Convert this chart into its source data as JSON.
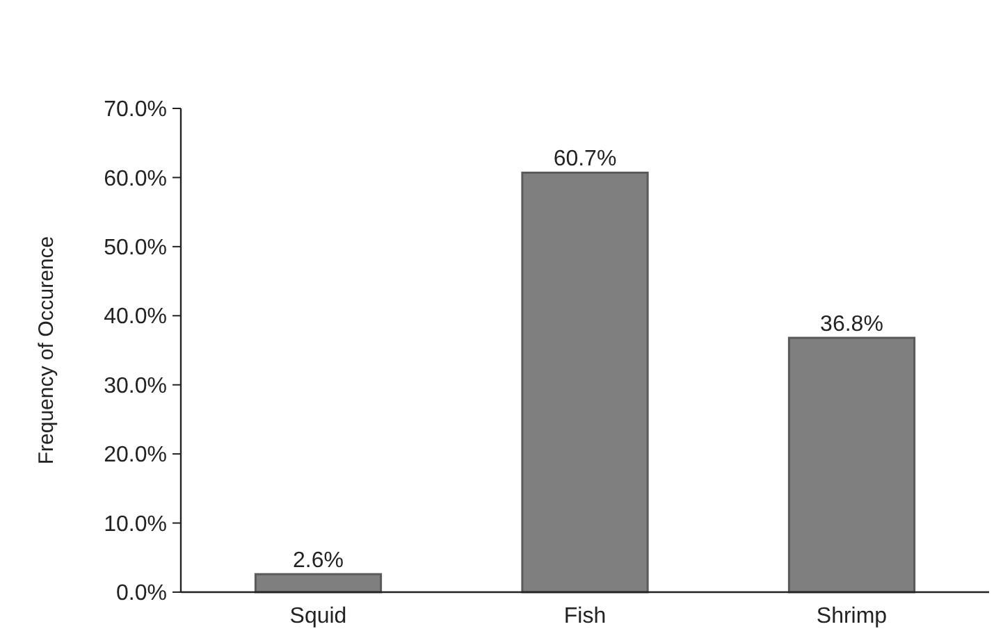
{
  "chart_data": {
    "type": "bar",
    "ylabel": "Frequency of Occurence",
    "categories": [
      "Squid",
      "Fish",
      "Shrimp"
    ],
    "values": [
      2.6,
      60.7,
      36.8
    ],
    "color": "#7f7f7f",
    "value_labels": [
      "2.6%",
      "60.7%",
      "36.8%"
    ],
    "ylim": [
      0,
      70
    ],
    "yticks": [
      {
        "value": 0,
        "label": "0.0%"
      },
      {
        "value": 10,
        "label": "10.0%"
      },
      {
        "value": 20,
        "label": "20.0%"
      },
      {
        "value": 30,
        "label": "30.0%"
      },
      {
        "value": 40,
        "label": "40.0%"
      },
      {
        "value": 50,
        "label": "50.0%"
      },
      {
        "value": 60,
        "label": "60.0%"
      },
      {
        "value": 70,
        "label": "70.0%"
      }
    ],
    "grid": false
  }
}
